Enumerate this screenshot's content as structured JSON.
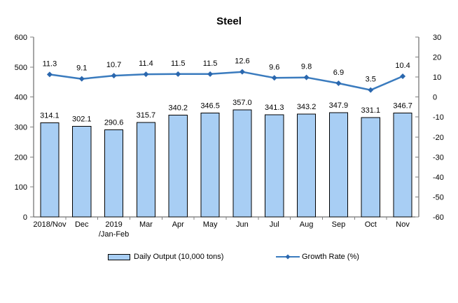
{
  "chart_data": {
    "type": "combo",
    "title": "Steel",
    "categories": [
      "2018/Nov",
      "Dec",
      "2019\n/Jan-Feb",
      "Mar",
      "Apr",
      "May",
      "Jun",
      "Jul",
      "Aug",
      "Sep",
      "Oct",
      "Nov"
    ],
    "series": [
      {
        "name": "Daily Output (10,000 tons)",
        "type": "bar",
        "axis": "left",
        "values": [
          314.1,
          302.1,
          290.6,
          315.7,
          340.2,
          346.5,
          357.0,
          341.3,
          343.2,
          347.9,
          331.1,
          346.7
        ],
        "labels": [
          "314.1",
          "302.1",
          "290.6",
          "315.7",
          "340.2",
          "346.5",
          "357.0",
          "341.3",
          "343.2",
          "347.9",
          "331.1",
          "346.7"
        ]
      },
      {
        "name": "Growth Rate (%)",
        "type": "line",
        "axis": "right",
        "values": [
          11.3,
          9.1,
          10.7,
          11.4,
          11.5,
          11.5,
          12.6,
          9.6,
          9.8,
          6.9,
          3.5,
          10.4
        ],
        "labels": [
          "11.3",
          "9.1",
          "10.7",
          "11.4",
          "11.5",
          "11.5",
          "12.6",
          "9.6",
          "9.8",
          "6.9",
          "3.5",
          "10.4"
        ]
      }
    ],
    "left_axis": {
      "min": 0,
      "max": 600,
      "step": 100,
      "ticks": [
        "600",
        "500",
        "400",
        "300",
        "200",
        "100",
        "0"
      ]
    },
    "right_axis": {
      "min": -60,
      "max": 30,
      "step": 10,
      "ticks": [
        "30",
        "20",
        "10",
        "0",
        "-10",
        "-20",
        "-30",
        "-40",
        "-50",
        "-60"
      ]
    },
    "legend_position": "bottom",
    "grid": false,
    "colors": {
      "bar_fill": "#A8CEF4",
      "bar_border": "#000000",
      "line": "#3A7BBE",
      "marker": "#2A67AE",
      "axis": "#4d4d4d",
      "tick": "#808080",
      "text": "#000000"
    }
  }
}
